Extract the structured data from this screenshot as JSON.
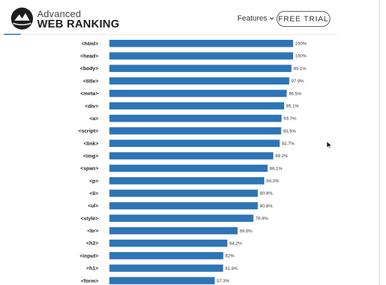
{
  "header": {
    "logo_line1": "Advanced",
    "logo_line2": "WEB RANKING",
    "nav_features": "Features",
    "cta_label": "FREE TRIAL"
  },
  "colors": {
    "bar": "#2e75b6",
    "accent": "#4a90c8"
  },
  "chart_data": {
    "type": "bar",
    "orientation": "horizontal",
    "categories": [
      "<html>",
      "<head>",
      "<body>",
      "<title>",
      "<meta>",
      "<div>",
      "<a>",
      "<script>",
      "<link>",
      "<img>",
      "<span>",
      "<p>",
      "<li>",
      "<ul>",
      "<style>",
      "<br>",
      "<h2>",
      "<input>",
      "<h1>",
      "<form>"
    ],
    "values": [
      100,
      100,
      99.1,
      97.9,
      96.5,
      95.1,
      93.7,
      93.5,
      92.7,
      89.2,
      86.1,
      84.3,
      80.8,
      80.8,
      78.4,
      69.8,
      64.2,
      62,
      61.9,
      57.3
    ],
    "value_labels": [
      "100%",
      "100%",
      "99.1%",
      "97.9%",
      "96.5%",
      "95.1%",
      "93.7%",
      "93.5%",
      "92.7%",
      "89.2%",
      "86.1%",
      "84.3%",
      "80.8%",
      "80.8%",
      "78.4%",
      "69.8%",
      "64.2%",
      "62%",
      "61.9%",
      "57.3%"
    ],
    "xlim": [
      0,
      100
    ],
    "grid": false,
    "title": "",
    "xlabel": "",
    "ylabel": ""
  }
}
